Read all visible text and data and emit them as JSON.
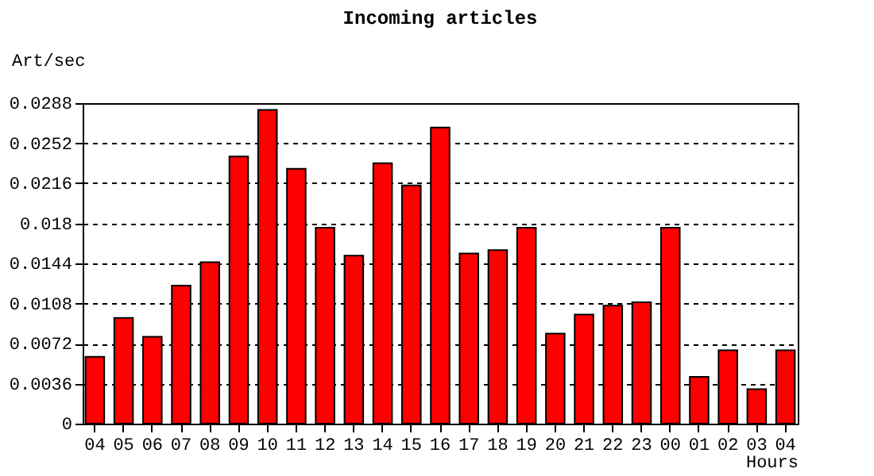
{
  "chart_data": {
    "type": "bar",
    "title": "Incoming articles",
    "xlabel": "Hours",
    "ylabel": "Art/sec",
    "categories": [
      "04",
      "05",
      "06",
      "07",
      "08",
      "09",
      "10",
      "11",
      "12",
      "13",
      "14",
      "15",
      "16",
      "17",
      "18",
      "19",
      "20",
      "21",
      "22",
      "23",
      "00",
      "01",
      "02",
      "03",
      "04"
    ],
    "values": [
      0.006,
      0.0095,
      0.0078,
      0.0124,
      0.0145,
      0.024,
      0.0282,
      0.0229,
      0.0176,
      0.0151,
      0.0234,
      0.0214,
      0.0266,
      0.0153,
      0.0156,
      0.0176,
      0.0081,
      0.0098,
      0.0106,
      0.0109,
      0.0176,
      0.0042,
      0.0066,
      0.0031,
      0.0066
    ],
    "color": "#ff0000",
    "ylim": [
      0,
      0.0288
    ],
    "yticks": [
      0,
      0.0036,
      0.0072,
      0.0108,
      0.0144,
      0.018,
      0.0216,
      0.0252,
      0.0288
    ],
    "grid": "y"
  }
}
